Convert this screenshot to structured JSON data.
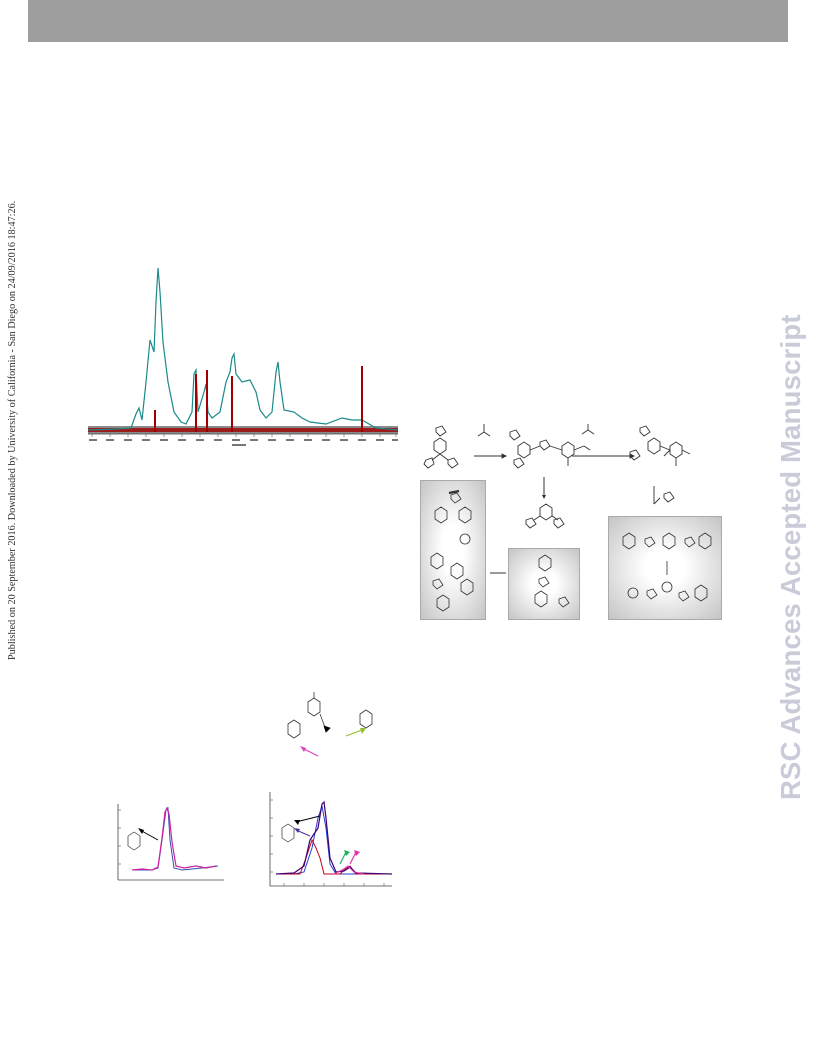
{
  "header": {
    "bar_color": "#9e9e9e"
  },
  "side_note": {
    "text": "Published on 20 September 2016. Downloaded by University of California - San Diego on 24/09/2016 18:47:26."
  },
  "watermark": {
    "text": "RSC Advances Accepted Manuscript",
    "color": "#c9cbd8"
  },
  "figures": {
    "spectrum": {
      "colors": {
        "teal": "#1a8a8a",
        "red": "#a00000",
        "blue": "#2040a0"
      }
    },
    "scheme": {
      "colors": {
        "panel_edge": "#c4c4c4",
        "structure": "#333333"
      }
    },
    "bottom_left_plot": {
      "colors": {
        "magenta": "#d020a0",
        "purple": "#a020d0",
        "fit": "#3050b0"
      }
    },
    "bottom_right_plot": {
      "colors": {
        "purple": "#400070",
        "blue": "#2040d0",
        "red": "#c00020",
        "green": "#20b060",
        "pink": "#e030b0"
      }
    }
  }
}
